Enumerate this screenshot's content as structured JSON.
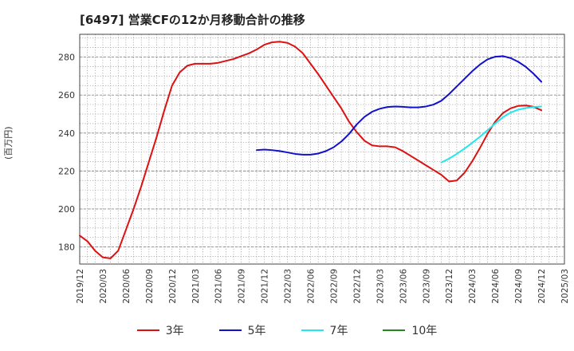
{
  "chart_data": {
    "type": "line",
    "title": "[6497]  営業CFの12か月移動合計の推移",
    "ylabel": "(百万円)",
    "xlabel": "",
    "ylim": [
      171,
      292
    ],
    "yticks": [
      180,
      200,
      220,
      240,
      260,
      280
    ],
    "x_range": [
      "2019-12",
      "2025-03"
    ],
    "x_ticks": [
      "2019/12",
      "2020/03",
      "2020/06",
      "2020/09",
      "2020/12",
      "2021/03",
      "2021/06",
      "2021/09",
      "2021/12",
      "2022/03",
      "2022/06",
      "2022/09",
      "2022/12",
      "2023/03",
      "2023/06",
      "2023/09",
      "2023/12",
      "2024/03",
      "2024/06",
      "2024/09",
      "2024/12",
      "2025/03"
    ],
    "grid": true,
    "legend_position": "bottom",
    "series": [
      {
        "name": "3年",
        "color": "#dd1111",
        "points": [
          [
            "2019-12",
            186
          ],
          [
            "2020-01",
            183
          ],
          [
            "2020-02",
            178
          ],
          [
            "2020-03",
            174.5
          ],
          [
            "2020-04",
            174
          ],
          [
            "2020-05",
            178
          ],
          [
            "2020-06",
            189
          ],
          [
            "2020-07",
            200
          ],
          [
            "2020-08",
            212
          ],
          [
            "2020-09",
            225
          ],
          [
            "2020-10",
            238
          ],
          [
            "2020-11",
            252
          ],
          [
            "2020-12",
            265
          ],
          [
            "2021-01",
            272
          ],
          [
            "2021-02",
            275.5
          ],
          [
            "2021-03",
            276.5
          ],
          [
            "2021-04",
            276.5
          ],
          [
            "2021-05",
            276.5
          ],
          [
            "2021-06",
            277
          ],
          [
            "2021-07",
            278
          ],
          [
            "2021-08",
            279
          ],
          [
            "2021-09",
            280.5
          ],
          [
            "2021-10",
            282
          ],
          [
            "2021-11",
            284
          ],
          [
            "2021-12",
            286.5
          ],
          [
            "2022-01",
            287.8
          ],
          [
            "2022-02",
            288.1
          ],
          [
            "2022-03",
            287.5
          ],
          [
            "2022-04",
            285.5
          ],
          [
            "2022-05",
            282
          ],
          [
            "2022-06",
            276.5
          ],
          [
            "2022-07",
            271
          ],
          [
            "2022-08",
            265
          ],
          [
            "2022-09",
            259
          ],
          [
            "2022-10",
            253
          ],
          [
            "2022-11",
            246
          ],
          [
            "2022-12",
            240.5
          ],
          [
            "2023-01",
            236
          ],
          [
            "2023-02",
            233.5
          ],
          [
            "2023-03",
            233
          ],
          [
            "2023-04",
            233
          ],
          [
            "2023-05",
            232.5
          ],
          [
            "2023-06",
            230.5
          ],
          [
            "2023-07",
            228
          ],
          [
            "2023-08",
            225.5
          ],
          [
            "2023-09",
            223
          ],
          [
            "2023-10",
            220.5
          ],
          [
            "2023-11",
            218
          ],
          [
            "2023-12",
            214.5
          ],
          [
            "2024-01",
            215
          ],
          [
            "2024-02",
            219
          ],
          [
            "2024-03",
            225
          ],
          [
            "2024-04",
            232
          ],
          [
            "2024-05",
            239.5
          ],
          [
            "2024-06",
            246
          ],
          [
            "2024-07",
            250.5
          ],
          [
            "2024-08",
            253
          ],
          [
            "2024-09",
            254.3
          ],
          [
            "2024-10",
            254.5
          ],
          [
            "2024-11",
            253.8
          ],
          [
            "2024-12",
            252
          ]
        ]
      },
      {
        "name": "5年",
        "color": "#1111cc",
        "points": [
          [
            "2021-11",
            231
          ],
          [
            "2021-12",
            231.3
          ],
          [
            "2022-01",
            231
          ],
          [
            "2022-02",
            230.5
          ],
          [
            "2022-03",
            229.8
          ],
          [
            "2022-04",
            229
          ],
          [
            "2022-05",
            228.6
          ],
          [
            "2022-06",
            228.6
          ],
          [
            "2022-07",
            229.2
          ],
          [
            "2022-08",
            230.5
          ],
          [
            "2022-09",
            232.5
          ],
          [
            "2022-10",
            235.5
          ],
          [
            "2022-11",
            239.5
          ],
          [
            "2022-12",
            244.5
          ],
          [
            "2023-01",
            248.5
          ],
          [
            "2023-02",
            251.2
          ],
          [
            "2023-03",
            252.8
          ],
          [
            "2023-04",
            253.7
          ],
          [
            "2023-05",
            254
          ],
          [
            "2023-06",
            253.8
          ],
          [
            "2023-07",
            253.5
          ],
          [
            "2023-08",
            253.5
          ],
          [
            "2023-09",
            254
          ],
          [
            "2023-10",
            255
          ],
          [
            "2023-11",
            257
          ],
          [
            "2023-12",
            260.5
          ],
          [
            "2024-01",
            264.5
          ],
          [
            "2024-02",
            268.5
          ],
          [
            "2024-03",
            272.5
          ],
          [
            "2024-04",
            276
          ],
          [
            "2024-05",
            278.8
          ],
          [
            "2024-06",
            280.2
          ],
          [
            "2024-07",
            280.5
          ],
          [
            "2024-08",
            279.5
          ],
          [
            "2024-09",
            277.5
          ],
          [
            "2024-10",
            274.8
          ],
          [
            "2024-11",
            271.2
          ],
          [
            "2024-12",
            267
          ]
        ]
      },
      {
        "name": "7年",
        "color": "#22e8ee",
        "points": [
          [
            "2023-11",
            224.5
          ],
          [
            "2023-12",
            226.5
          ],
          [
            "2024-01",
            229
          ],
          [
            "2024-02",
            231.8
          ],
          [
            "2024-03",
            234.8
          ],
          [
            "2024-04",
            238
          ],
          [
            "2024-05",
            241.5
          ],
          [
            "2024-06",
            245
          ],
          [
            "2024-07",
            248.3
          ],
          [
            "2024-08",
            250.8
          ],
          [
            "2024-09",
            252.3
          ],
          [
            "2024-10",
            253.2
          ],
          [
            "2024-11",
            253.7
          ],
          [
            "2024-12",
            254
          ]
        ]
      },
      {
        "name": "10年",
        "color": "#228822",
        "points": []
      }
    ]
  }
}
